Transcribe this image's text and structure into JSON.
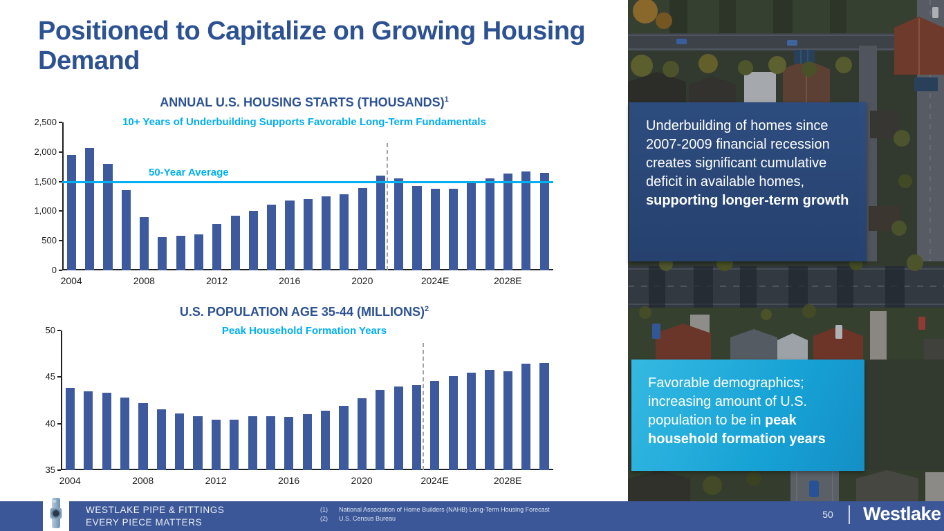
{
  "slide": {
    "title": "Positioned to Capitalize on Growing Housing Demand",
    "title_color": "#2d5292"
  },
  "chart_data": [
    {
      "type": "bar",
      "title": "ANNUAL U.S. HOUSING STARTS (THOUSANDS)",
      "title_superscript": "1",
      "subtitle": "10+ Years of Underbuilding Supports Favorable Long-Term Fundamentals",
      "categories": [
        2004,
        2005,
        2006,
        2007,
        2008,
        2009,
        2010,
        2011,
        2012,
        2013,
        2014,
        2015,
        2016,
        2017,
        2018,
        2019,
        2020,
        2021,
        2022,
        2023,
        2024,
        2025,
        2026,
        2027,
        2028,
        2029,
        2030
      ],
      "values": [
        1955,
        2070,
        1800,
        1355,
        905,
        555,
        585,
        610,
        780,
        925,
        1000,
        1110,
        1175,
        1205,
        1250,
        1290,
        1390,
        1600,
        1550,
        1420,
        1375,
        1375,
        1480,
        1550,
        1635,
        1670,
        1650
      ],
      "ylim": [
        0,
        2500
      ],
      "yticks": [
        {
          "value": 0,
          "label": "0"
        },
        {
          "value": 500,
          "label": "500"
        },
        {
          "value": 1000,
          "label": "1,000"
        },
        {
          "value": 1500,
          "label": "1,500"
        },
        {
          "value": 2000,
          "label": "2,000"
        },
        {
          "value": 2500,
          "label": "2,500"
        }
      ],
      "xticks": [
        {
          "at": 2004,
          "label": "2004"
        },
        {
          "at": 2008,
          "label": "2008"
        },
        {
          "at": 2012,
          "label": "2012"
        },
        {
          "at": 2016,
          "label": "2016"
        },
        {
          "at": 2020,
          "label": "2020"
        },
        {
          "at": 2024,
          "label": "2024E"
        },
        {
          "at": 2028,
          "label": "2028E"
        }
      ],
      "reference_line": {
        "value": 1490,
        "label": "50-Year Average"
      },
      "forecast_divider_after": 2021,
      "grid": false,
      "legend": false,
      "bar_color": "#3d5a9e",
      "accent_color": "#00b0f0"
    },
    {
      "type": "bar",
      "title": "U.S. POPULATION AGE 35-44 (MILLIONS)",
      "title_superscript": "2",
      "subtitle": "Peak Household Formation Years",
      "categories": [
        2004,
        2005,
        2006,
        2007,
        2008,
        2009,
        2010,
        2011,
        2012,
        2013,
        2014,
        2015,
        2016,
        2017,
        2018,
        2019,
        2020,
        2021,
        2022,
        2023,
        2024,
        2025,
        2026,
        2027,
        2028,
        2029,
        2030
      ],
      "values": [
        43.8,
        43.5,
        43.3,
        42.8,
        42.2,
        41.5,
        41.1,
        40.8,
        40.4,
        40.4,
        40.8,
        40.8,
        40.7,
        41.0,
        41.4,
        41.9,
        42.7,
        43.6,
        44.0,
        44.1,
        44.6,
        45.1,
        45.5,
        45.8,
        45.6,
        46.4,
        46.5
      ],
      "ylim": [
        35,
        50
      ],
      "yticks": [
        {
          "value": 35,
          "label": "35"
        },
        {
          "value": 40,
          "label": "40"
        },
        {
          "value": 45,
          "label": "45"
        },
        {
          "value": 50,
          "label": "50"
        }
      ],
      "xticks": [
        {
          "at": 2004,
          "label": "2004"
        },
        {
          "at": 2008,
          "label": "2008"
        },
        {
          "at": 2012,
          "label": "2012"
        },
        {
          "at": 2016,
          "label": "2016"
        },
        {
          "at": 2020,
          "label": "2020"
        },
        {
          "at": 2024,
          "label": "2024E"
        },
        {
          "at": 2028,
          "label": "2028E"
        }
      ],
      "forecast_divider_after": 2023,
      "grid": false,
      "legend": false,
      "bar_color": "#3d5a9e",
      "accent_color": "#00b0f0"
    }
  ],
  "callouts": [
    {
      "text_normal": "Underbuilding of homes since 2007-2009 financial recession creates significant cumulative deficit in available homes, ",
      "text_bold": "supporting longer-term growth",
      "bg_color": "#2d4d81"
    },
    {
      "text_normal": "Favorable demographics; increasing amount of U.S. population to be in ",
      "text_bold": "peak household formation years",
      "bg_color": "#17a2d5"
    }
  ],
  "media": {
    "side_photo": "aerial-neighborhood-photo",
    "footer_icon": "pipe-fitting-photo"
  },
  "footer": {
    "brand_line1": "WESTLAKE PIPE & FITTINGS",
    "brand_line2": "EVERY PIECE MATTERS",
    "footnotes": [
      {
        "marker": "(1)",
        "text": "National Association of Home Builders (NAHB) Long-Term Housing Forecast"
      },
      {
        "marker": "(2)",
        "text": "U.S. Census Bureau"
      }
    ],
    "page_number": "50",
    "logo_text": "Westlake",
    "bg_color": "#3b5797"
  }
}
